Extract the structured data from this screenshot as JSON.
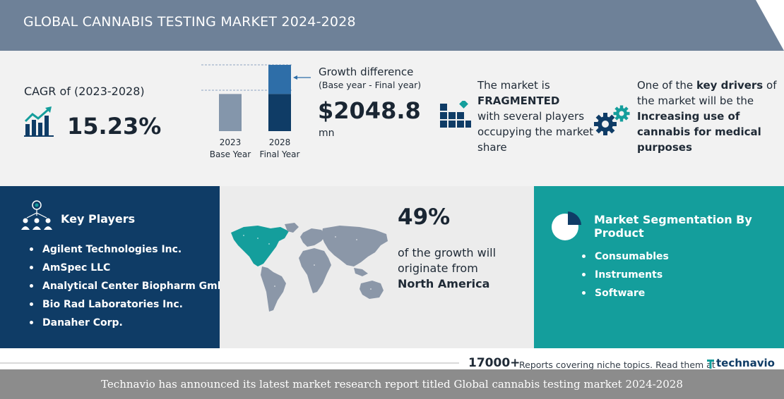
{
  "header": {
    "title": "GLOBAL CANNABIS TESTING MARKET 2024-2028"
  },
  "cagr": {
    "label": "CAGR of (2023-2028)",
    "value": "15.23%",
    "icon": "chart-growth-icon"
  },
  "growth": {
    "bars": [
      {
        "year": "2023",
        "label": "Base Year",
        "relative_height": 0.56
      },
      {
        "year": "2028",
        "label": "Final Year",
        "relative_height": 1.0
      }
    ],
    "title": "Growth difference",
    "subtitle": "(Base year - Final year)",
    "value": "$2048.8",
    "unit": "mn"
  },
  "market": {
    "line1": "The market is",
    "emphasis": "FRAGMENTED",
    "line2": "with several players occupying the market share",
    "icon": "fragmented-blocks-icon"
  },
  "driver": {
    "prefix": "One of the",
    "emphasis1": "key drivers",
    "middle": "of the market will be the",
    "emphasis2": "Increasing use of cannabis for medical purposes",
    "icon": "gears-icon"
  },
  "key_players": {
    "title": "Key Players",
    "icon": "people-network-icon",
    "items": [
      "Agilent Technologies Inc.",
      "AmSpec LLC",
      "Analytical Center Biopharm GmbH",
      "Bio Rad Laboratories Inc.",
      "Danaher Corp."
    ]
  },
  "region": {
    "percent": "49%",
    "text": "of the growth will originate from",
    "region": "North America",
    "icon": "world-map"
  },
  "segmentation": {
    "title": "Market Segmentation By Product",
    "icon": "pie-chart-icon",
    "items": [
      "Consumables",
      "Instruments",
      "Software"
    ]
  },
  "footer": {
    "count": "17000+",
    "text": "Reports covering niche topics. Read them at",
    "brand": "technavio",
    "caption": "Technavio has announced its latest market research report titled Global cannabis testing market 2024-2028"
  },
  "colors": {
    "header": "#6e8198",
    "navy": "#0f3c66",
    "teal": "#149e9c",
    "bar_light": "#8496ab",
    "bar_top": "#2e6ea8"
  }
}
